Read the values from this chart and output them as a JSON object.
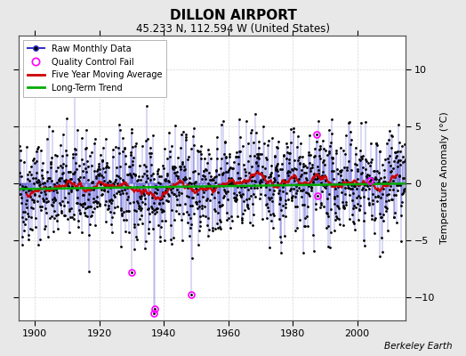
{
  "title": "DILLON AIRPORT",
  "subtitle": "45.233 N, 112.594 W (United States)",
  "ylabel": "Temperature Anomaly (°C)",
  "attribution": "Berkeley Earth",
  "xlim": [
    1895,
    2015
  ],
  "ylim": [
    -12,
    13
  ],
  "yticks": [
    -10,
    -5,
    0,
    5,
    10
  ],
  "xticks": [
    1900,
    1920,
    1940,
    1960,
    1980,
    2000
  ],
  "bg_color": "#e8e8e8",
  "plot_bg_color": "#ffffff",
  "seed": 42,
  "start_year": 1895,
  "end_year": 2014,
  "qc_fail_points": [
    {
      "year": 1930,
      "month": 3,
      "value": -7.8
    },
    {
      "year": 1937,
      "month": 1,
      "value": -11.4
    },
    {
      "year": 1937,
      "month": 3,
      "value": -11.0
    },
    {
      "year": 1948,
      "month": 9,
      "value": -9.7
    },
    {
      "year": 1987,
      "month": 5,
      "value": 4.3
    },
    {
      "year": 1987,
      "month": 9,
      "value": -1.1
    },
    {
      "year": 2004,
      "month": 1,
      "value": 0.3
    }
  ],
  "trend_slope": 0.004,
  "trend_intercept": -0.25,
  "noise_std": 2.3,
  "raw_color": "#3333cc",
  "raw_dot_color": "#000000",
  "ma_color": "#cc0000",
  "trend_color": "#00aa00",
  "qc_color": "#ff00ff",
  "grid_color": "#cccccc",
  "spine_color": "#555555"
}
